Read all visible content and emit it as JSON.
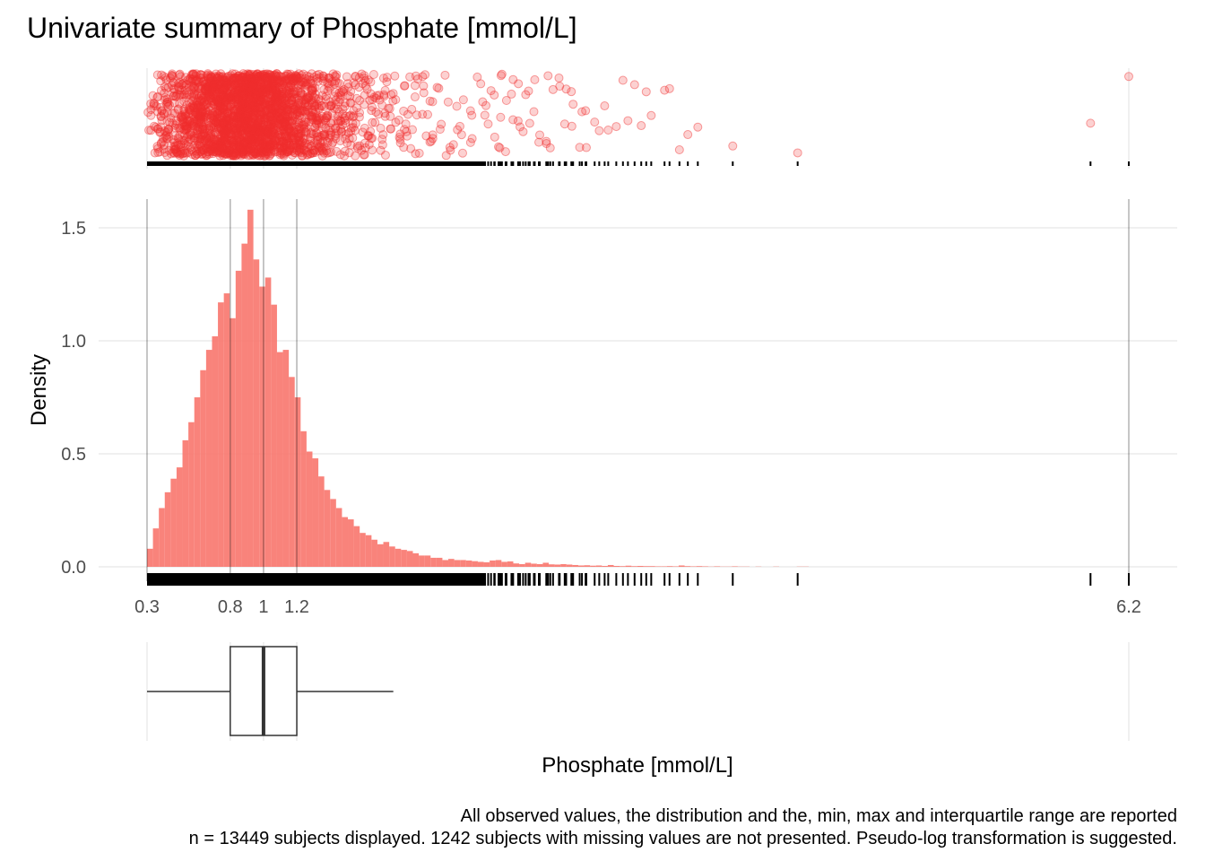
{
  "chart_data": {
    "type": "histogram",
    "title": "Univariate summary of Phosphate [mmol/L]",
    "xlabel": "Phosphate [mmol/L]",
    "ylabel": "Density",
    "xlim": [
      0.3,
      6.2
    ],
    "ylim": [
      0,
      1.6
    ],
    "x_ticks": [
      "0.3",
      "0.8",
      "1",
      "1.2",
      "6.2"
    ],
    "x_tick_values": [
      0.3,
      0.8,
      1.0,
      1.2,
      6.2
    ],
    "y_ticks": [
      "0.0",
      "0.5",
      "1.0",
      "1.5"
    ],
    "y_tick_values": [
      0.0,
      0.5,
      1.0,
      1.5
    ],
    "grid": true,
    "color": "#F8766D",
    "point_color": "#F02E2E",
    "summary": {
      "min": 0.3,
      "q1": 0.8,
      "median": 1.0,
      "q3": 1.2,
      "max": 6.2,
      "whisker_high": 1.78
    },
    "bins": {
      "start": 0.3,
      "width": 0.0355,
      "density": [
        0.08,
        0.17,
        0.26,
        0.33,
        0.39,
        0.44,
        0.56,
        0.64,
        0.75,
        0.87,
        0.96,
        1.02,
        1.17,
        1.21,
        1.1,
        1.31,
        1.43,
        1.58,
        1.36,
        1.24,
        1.28,
        1.16,
        0.95,
        0.96,
        0.84,
        0.75,
        0.6,
        0.51,
        0.48,
        0.4,
        0.34,
        0.3,
        0.26,
        0.22,
        0.21,
        0.18,
        0.15,
        0.14,
        0.12,
        0.1,
        0.11,
        0.09,
        0.08,
        0.075,
        0.07,
        0.06,
        0.05,
        0.05,
        0.04,
        0.04,
        0.03,
        0.035,
        0.03,
        0.03,
        0.028,
        0.025,
        0.022,
        0.02,
        0.028,
        0.03,
        0.022,
        0.024,
        0.015,
        0.012,
        0.018,
        0.014,
        0.012,
        0.018,
        0.011,
        0.01,
        0.012,
        0.01,
        0.008,
        0.006,
        0.007,
        0.005,
        0.006,
        0.004,
        0.008,
        0.004,
        0.003,
        0.005,
        0.003,
        0.004,
        0.003,
        0.003,
        0.002,
        0.002,
        0.003,
        0.002,
        0.006,
        0.003,
        0.002,
        0.003,
        0.002,
        0.001,
        0.002,
        0.001,
        0.001,
        0.002,
        0.001,
        0.001,
        0.0,
        0.001,
        0.0,
        0.0,
        0.001,
        0.0,
        0.0,
        0.0,
        0.001,
        0.001
      ]
    },
    "outliers": [
      2.35,
      2.42,
      2.46,
      2.49,
      2.53,
      2.56,
      2.6,
      2.63,
      2.66,
      2.7,
      2.74,
      2.78,
      2.81,
      2.85,
      2.9,
      2.94,
      2.99,
      3.05,
      3.12,
      3.16,
      3.19,
      3.23,
      3.27,
      3.3,
      3.33,
      3.41,
      3.44,
      3.55,
      3.61,
      3.82,
      4.21,
      5.97
    ],
    "footnote": [
      "All observed values, the distribution and the, min, max and interquartile range are reported",
      "n = 13449 subjects displayed. 1242 subjects with missing values are not presented. Pseudo-log transformation is suggested."
    ]
  }
}
